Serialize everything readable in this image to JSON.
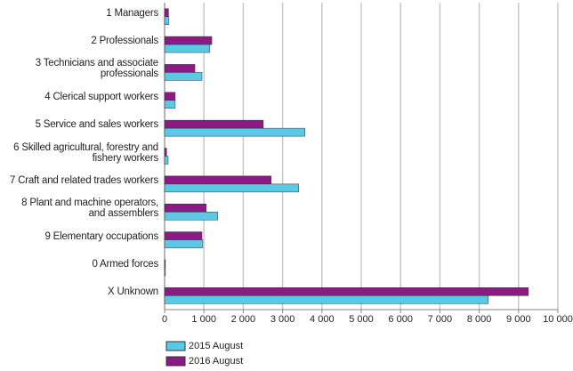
{
  "chart_data": {
    "type": "bar",
    "orientation": "horizontal",
    "categories": [
      "1 Managers",
      "2 Professionals",
      "3 Technicians and associate professionals",
      "4 Clerical support workers",
      "5 Service and sales workers",
      "6 Skilled agricultural, forestry and fishery workers",
      "7 Craft and related trades workers",
      "8 Plant and machine operators, and assemblers",
      "9 Elementary occupations",
      "0 Armed forces",
      "X Unknown"
    ],
    "series": [
      {
        "name": "2016 August",
        "color": "#8b1a84",
        "values": [
          100,
          1200,
          770,
          270,
          2510,
          50,
          2710,
          1060,
          950,
          20,
          9250
        ]
      },
      {
        "name": "2015 August",
        "color": "#5bc8e6",
        "values": [
          110,
          1150,
          950,
          270,
          3570,
          90,
          3410,
          1350,
          970,
          20,
          8230
        ]
      }
    ],
    "xlim": [
      0,
      10000
    ],
    "xticks": [
      {
        "value": 0,
        "label": "0"
      },
      {
        "value": 1000,
        "label": "1 000"
      },
      {
        "value": 2000,
        "label": "2 000"
      },
      {
        "value": 3000,
        "label": "3 000"
      },
      {
        "value": 4000,
        "label": "4 000"
      },
      {
        "value": 5000,
        "label": "5 000"
      },
      {
        "value": 6000,
        "label": "6 000"
      },
      {
        "value": 7000,
        "label": "7 000"
      },
      {
        "value": 8000,
        "label": "8 000"
      },
      {
        "value": 9000,
        "label": "9 000"
      },
      {
        "value": 10000,
        "label": "10 000"
      }
    ],
    "grid": true,
    "legend": "bottom"
  }
}
